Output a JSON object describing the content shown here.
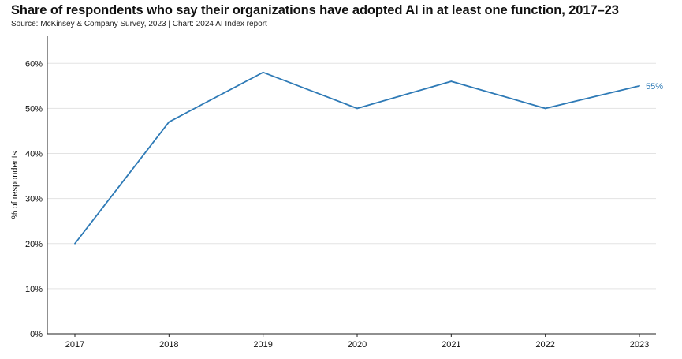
{
  "chart_data": {
    "type": "line",
    "title": "Share of respondents who say their organizations have adopted AI in at least one function, 2017–23",
    "subtitle": "Source: McKinsey & Company Survey, 2023 | Chart: 2024 AI Index report",
    "xlabel": "",
    "ylabel": "% of respondents",
    "categories": [
      "2017",
      "2018",
      "2019",
      "2020",
      "2021",
      "2022",
      "2023"
    ],
    "series": [
      {
        "values": [
          20,
          47,
          58,
          50,
          56,
          50,
          55
        ]
      }
    ],
    "y_ticks": [
      0,
      10,
      20,
      30,
      40,
      50,
      60
    ],
    "y_tick_labels": [
      "0%",
      "10%",
      "20%",
      "30%",
      "40%",
      "50%",
      "60%"
    ],
    "ylim": [
      0,
      66
    ],
    "end_label": "55%",
    "grid": true,
    "line_color": "#2e7ab6"
  }
}
